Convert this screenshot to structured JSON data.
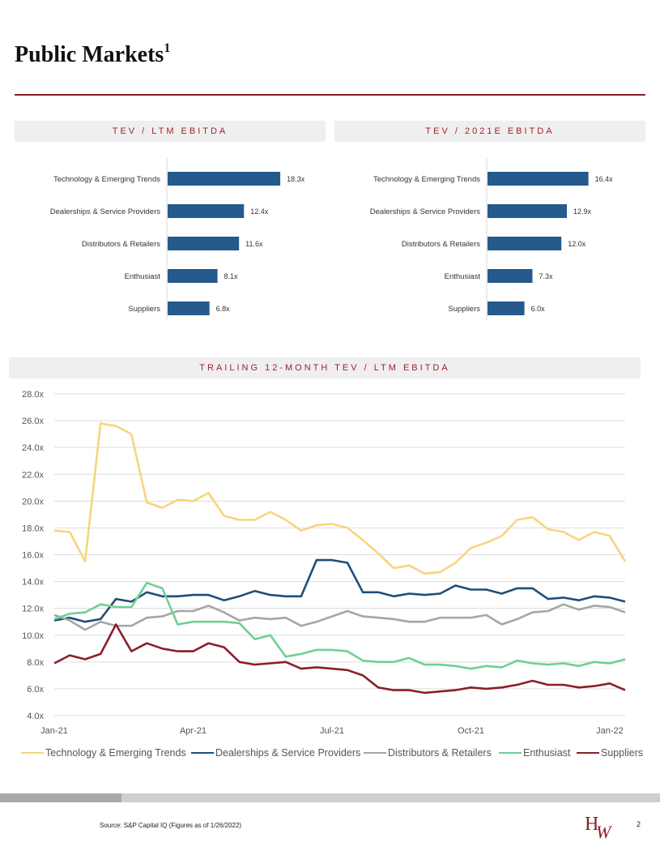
{
  "page": {
    "title": "Public Markets",
    "title_superscript": "1",
    "source": "Source: S&P Capital IQ (Figures as of 1/26/2022)",
    "page_number": "2",
    "logo_text": "HW"
  },
  "colors": {
    "accent": "#8b1e2b",
    "bar": "#245a8c",
    "tech": "#f7d57e",
    "dealers": "#1f4e79",
    "distributors": "#a6a6a6",
    "enthusiast": "#6fcf97",
    "suppliers": "#8b1e2b"
  },
  "chart_data": [
    {
      "type": "bar",
      "orientation": "horizontal",
      "title": "TEV / LTM EBITDA",
      "categories": [
        "Technology & Emerging Trends",
        "Dealerships & Service Providers",
        "Distributors & Retailers",
        "Enthusiast",
        "Suppliers"
      ],
      "values": [
        18.3,
        12.4,
        11.6,
        8.1,
        6.8
      ],
      "labels": [
        "18.3x",
        "12.4x",
        "11.6x",
        "8.1x",
        "6.8x"
      ]
    },
    {
      "type": "bar",
      "orientation": "horizontal",
      "title": "TEV / 2021E EBITDA",
      "categories": [
        "Technology & Emerging Trends",
        "Dealerships & Service Providers",
        "Distributors & Retailers",
        "Enthusiast",
        "Suppliers"
      ],
      "values": [
        16.4,
        12.9,
        12.0,
        7.3,
        6.0
      ],
      "labels": [
        "16.4x",
        "12.9x",
        "12.0x",
        "7.3x",
        "6.0x"
      ]
    },
    {
      "type": "line",
      "title": "TRAILING 12-MONTH TEV / LTM EBITDA",
      "ylim": [
        4,
        28
      ],
      "yticks": [
        "28.0x",
        "26.0x",
        "24.0x",
        "22.0x",
        "20.0x",
        "18.0x",
        "16.0x",
        "14.0x",
        "12.0x",
        "10.0x",
        "8.0x",
        "6.0x",
        "4.0x"
      ],
      "ytick_values": [
        28,
        26,
        24,
        22,
        20,
        18,
        16,
        14,
        12,
        10,
        8,
        6,
        4
      ],
      "xticks": [
        "Jan-21",
        "Apr-21",
        "Jul-21",
        "Oct-21",
        "Jan-22"
      ],
      "xtick_index": [
        0,
        9,
        18,
        27,
        36
      ],
      "n_points": 38,
      "series": [
        {
          "name": "Technology & Emerging Trends",
          "values": [
            17.8,
            17.7,
            15.5,
            25.8,
            25.6,
            25.0,
            19.9,
            19.5,
            20.1,
            20.0,
            20.6,
            18.9,
            18.6,
            18.6,
            19.2,
            18.6,
            17.8,
            18.2,
            18.3,
            18.0,
            17.1,
            16.1,
            15.0,
            15.2,
            14.6,
            14.7,
            15.4,
            16.5,
            16.9,
            17.4,
            18.6,
            18.8,
            17.9,
            17.7,
            17.1,
            17.7,
            17.4,
            15.5
          ]
        },
        {
          "name": "Dealerships & Service Providers",
          "values": [
            11.1,
            11.3,
            11.0,
            11.2,
            12.7,
            12.5,
            13.2,
            12.9,
            12.9,
            13.0,
            13.0,
            12.6,
            12.9,
            13.3,
            13.0,
            12.9,
            12.9,
            15.6,
            15.6,
            15.4,
            13.2,
            13.2,
            12.9,
            13.1,
            13.0,
            13.1,
            13.7,
            13.4,
            13.4,
            13.1,
            13.5,
            13.5,
            12.7,
            12.8,
            12.6,
            12.9,
            12.8,
            12.5
          ]
        },
        {
          "name": "Distributors & Retailers",
          "values": [
            11.5,
            11.1,
            10.4,
            11.0,
            10.7,
            10.7,
            11.3,
            11.4,
            11.8,
            11.8,
            12.2,
            11.7,
            11.1,
            11.3,
            11.2,
            11.3,
            10.7,
            11.0,
            11.4,
            11.8,
            11.4,
            11.3,
            11.2,
            11.0,
            11.0,
            11.3,
            11.3,
            11.3,
            11.5,
            10.8,
            11.2,
            11.7,
            11.8,
            12.3,
            11.9,
            12.2,
            12.1,
            11.7
          ]
        },
        {
          "name": "Enthusiast",
          "values": [
            11.2,
            11.6,
            11.7,
            12.3,
            12.1,
            12.1,
            13.9,
            13.5,
            10.8,
            11.0,
            11.0,
            11.0,
            10.9,
            9.7,
            10.0,
            8.4,
            8.6,
            8.9,
            8.9,
            8.8,
            8.1,
            8.0,
            8.0,
            8.3,
            7.8,
            7.8,
            7.7,
            7.5,
            7.7,
            7.6,
            8.1,
            7.9,
            7.8,
            7.9,
            7.7,
            8.0,
            7.9,
            8.2
          ]
        },
        {
          "name": "Suppliers",
          "values": [
            7.9,
            8.5,
            8.2,
            8.6,
            10.8,
            8.8,
            9.4,
            9.0,
            8.8,
            8.8,
            9.4,
            9.1,
            8.0,
            7.8,
            7.9,
            8.0,
            7.5,
            7.6,
            7.5,
            7.4,
            7.0,
            6.1,
            5.9,
            5.9,
            5.7,
            5.8,
            5.9,
            6.1,
            6.0,
            6.1,
            6.3,
            6.6,
            6.3,
            6.3,
            6.1,
            6.2,
            6.4,
            5.9
          ]
        }
      ]
    }
  ]
}
